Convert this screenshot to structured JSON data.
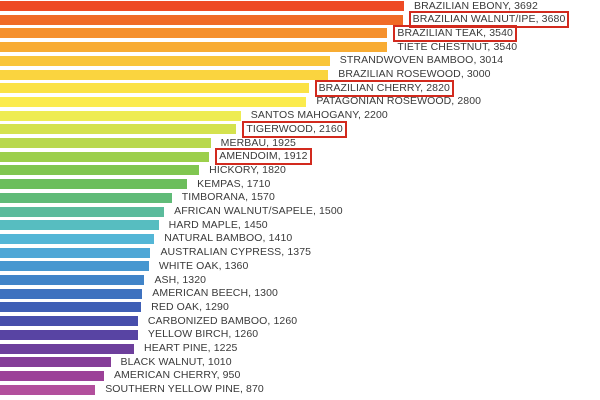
{
  "chart_data": {
    "type": "bar",
    "orientation": "horizontal",
    "title": "",
    "xlabel": "",
    "ylabel": "",
    "xlim": [
      0,
      3692
    ],
    "grid": false,
    "legend": "none",
    "highlight_color": "#d22a1e",
    "bars": [
      {
        "label": "BRAZILIAN EBONY, 3692",
        "value": 3692,
        "color": "#ee4a24",
        "highlighted": false
      },
      {
        "label": "BRAZILIAN WALNUT/IPE, 3680",
        "value": 3680,
        "color": "#f06a26",
        "highlighted": true
      },
      {
        "label": "BRAZILIAN TEAK, 3540",
        "value": 3540,
        "color": "#f5902d",
        "highlighted": true
      },
      {
        "label": "TIETE CHESTNUT, 3540",
        "value": 3540,
        "color": "#f8ac33",
        "highlighted": false
      },
      {
        "label": "STRANDWOVEN BAMBOO, 3014",
        "value": 3014,
        "color": "#f9c53a",
        "highlighted": false
      },
      {
        "label": "BRAZILIAN ROSEWOOD, 3000",
        "value": 3000,
        "color": "#fad43f",
        "highlighted": false
      },
      {
        "label": "BRAZILIAN CHERRY, 2820",
        "value": 2820,
        "color": "#fbe245",
        "highlighted": true
      },
      {
        "label": "PATAGONIAN ROSEWOOD, 2800",
        "value": 2800,
        "color": "#fbeb4d",
        "highlighted": false
      },
      {
        "label": "SANTOS MAHOGANY, 2200",
        "value": 2200,
        "color": "#eeec52",
        "highlighted": false
      },
      {
        "label": "TIGERWOOD, 2160",
        "value": 2160,
        "color": "#d4e24e",
        "highlighted": true
      },
      {
        "label": "MERBAU, 1925",
        "value": 1925,
        "color": "#b9d84c",
        "highlighted": false
      },
      {
        "label": "AMENDOIM, 1912",
        "value": 1912,
        "color": "#9ccf4b",
        "highlighted": true
      },
      {
        "label": "HICKORY, 1820",
        "value": 1820,
        "color": "#80c650",
        "highlighted": false
      },
      {
        "label": "KEMPAS, 1710",
        "value": 1710,
        "color": "#6cbe5b",
        "highlighted": false
      },
      {
        "label": "TIMBORANA, 1570",
        "value": 1570,
        "color": "#60bb78",
        "highlighted": false
      },
      {
        "label": "AFRICAN WALNUT/SAPELE, 1500",
        "value": 1500,
        "color": "#5bbb9c",
        "highlighted": false
      },
      {
        "label": "HARD MAPLE, 1450",
        "value": 1450,
        "color": "#57bdc0",
        "highlighted": false
      },
      {
        "label": "NATURAL BAMBOO, 1410",
        "value": 1410,
        "color": "#54b6d6",
        "highlighted": false
      },
      {
        "label": "AUSTRALIAN CYPRESS, 1375",
        "value": 1375,
        "color": "#4ea7d6",
        "highlighted": false
      },
      {
        "label": "WHITE OAK, 1360",
        "value": 1360,
        "color": "#4797d0",
        "highlighted": false
      },
      {
        "label": "ASH, 1320",
        "value": 1320,
        "color": "#4184c8",
        "highlighted": false
      },
      {
        "label": "AMERICAN BEECH, 1300",
        "value": 1300,
        "color": "#3e72bf",
        "highlighted": false
      },
      {
        "label": "RED OAK, 1290",
        "value": 1290,
        "color": "#3f5fb5",
        "highlighted": false
      },
      {
        "label": "CARBONIZED BAMBOO, 1260",
        "value": 1260,
        "color": "#474eab",
        "highlighted": false
      },
      {
        "label": "YELLOW BIRCH, 1260",
        "value": 1260,
        "color": "#5844a3",
        "highlighted": false
      },
      {
        "label": "HEART PINE, 1225",
        "value": 1225,
        "color": "#6d3f9c",
        "highlighted": false
      },
      {
        "label": "BLACK WALNUT, 1010",
        "value": 1010,
        "color": "#853d98",
        "highlighted": false
      },
      {
        "label": "AMERICAN CHERRY, 950",
        "value": 950,
        "color": "#9c4198",
        "highlighted": false
      },
      {
        "label": "SOUTHERN YELLOW PINE, 870",
        "value": 870,
        "color": "#b24f9c",
        "highlighted": false
      }
    ]
  }
}
